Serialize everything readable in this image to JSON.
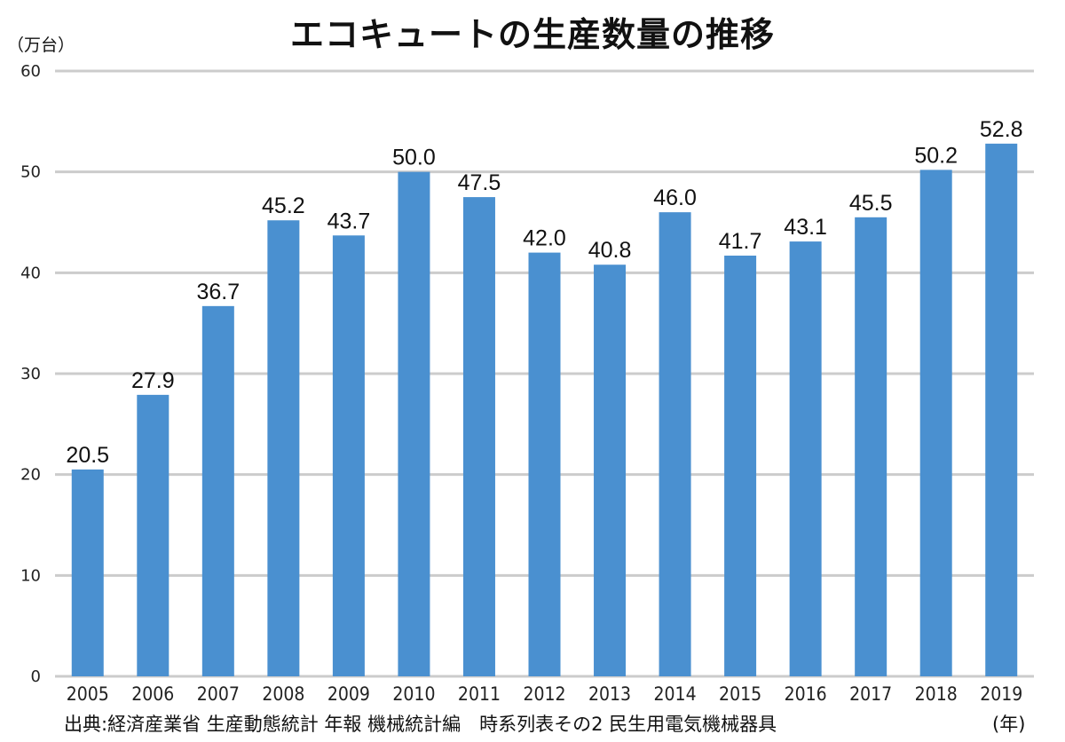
{
  "chart_data": {
    "type": "bar",
    "title": "エコキュートの生産数量の推移",
    "ylabel": "（万台）",
    "xlabel": "(年)",
    "categories": [
      "2005",
      "2006",
      "2007",
      "2008",
      "2009",
      "2010",
      "2011",
      "2012",
      "2013",
      "2014",
      "2015",
      "2016",
      "2017",
      "2018",
      "2019"
    ],
    "values": [
      20.5,
      27.9,
      36.7,
      45.2,
      43.7,
      50.0,
      47.5,
      42.0,
      40.8,
      46.0,
      41.7,
      43.1,
      45.5,
      50.2,
      52.8
    ],
    "data_labels": [
      "20.5",
      "27.9",
      "36.7",
      "45.2",
      "43.7",
      "50.0",
      "47.5",
      "42.0",
      "40.8",
      "46.0",
      "41.7",
      "43.1",
      "45.5",
      "50.2",
      "52.8"
    ],
    "yticks": [
      "0",
      "10",
      "20",
      "30",
      "40",
      "50",
      "60"
    ],
    "ylim": [
      0,
      60
    ],
    "grid": true,
    "bar_color": "#4a90d0",
    "grid_color": "#cccccc",
    "source": "出典:経済産業省 生産動態統計 年報 機械統計編　時系列表その2 民生用電気機械器具"
  }
}
